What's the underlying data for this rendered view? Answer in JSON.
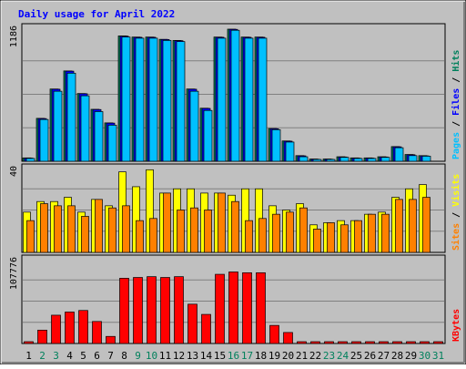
{
  "chart_data": {
    "type": "bar",
    "title": "Daily usage for April 2022",
    "categories": [
      "1",
      "2",
      "3",
      "4",
      "5",
      "6",
      "7",
      "8",
      "9",
      "10",
      "11",
      "12",
      "13",
      "14",
      "15",
      "16",
      "17",
      "18",
      "19",
      "20",
      "21",
      "22",
      "23",
      "24",
      "25",
      "26",
      "27",
      "28",
      "29",
      "30",
      "31"
    ],
    "weekend_days": [
      "2",
      "3",
      "9",
      "10",
      "16",
      "17",
      "23",
      "24",
      "30",
      "31"
    ],
    "colors": {
      "title": "#0000ff",
      "background": "#c0c0c0",
      "hits": "#00805c",
      "files": "#0000ff",
      "pages": "#00c0ff",
      "visits": "#ffff00",
      "sites": "#ff8000",
      "kbytes": "#ff0000",
      "weekday_label": "#000000",
      "weekend_label": "#00805c"
    },
    "panels": [
      {
        "id": "hits",
        "ymax": 1186,
        "ymax_label": "1186",
        "side_label": [
          {
            "text": "Pages",
            "color": "#00c0ff"
          },
          {
            "text": " / ",
            "color": "#000000"
          },
          {
            "text": "Files",
            "color": "#0000ff"
          },
          {
            "text": " / ",
            "color": "#000000"
          },
          {
            "text": "Hits",
            "color": "#00805c"
          }
        ],
        "series": [
          {
            "name": "Hits",
            "color": "#00805c",
            "values": [
              30,
              380,
              640,
              800,
              600,
              460,
              340,
              1110,
              1100,
              1100,
              1080,
              1070,
              640,
              470,
              1100,
              1170,
              1100,
              1100,
              290,
              180,
              50,
              20,
              20,
              40,
              30,
              30,
              40,
              130,
              60,
              50,
              0
            ]
          },
          {
            "name": "Files",
            "color": "#0000ff",
            "values": [
              28,
              378,
              638,
              798,
              598,
              458,
              338,
              1108,
              1098,
              1098,
              1078,
              1068,
              638,
              468,
              1098,
              1168,
              1098,
              1098,
              288,
              178,
              48,
              18,
              18,
              38,
              28,
              28,
              38,
              128,
              58,
              48,
              0
            ]
          },
          {
            "name": "Pages",
            "color": "#00c0ff",
            "values": [
              25,
              370,
              620,
              780,
              580,
              440,
              320,
              1100,
              1090,
              1090,
              1070,
              1060,
              620,
              450,
              1090,
              1160,
              1090,
              1090,
              280,
              170,
              40,
              15,
              15,
              35,
              25,
              25,
              35,
              120,
              50,
              45,
              0
            ]
          }
        ]
      },
      {
        "id": "visits",
        "ymax": 40,
        "ymax_label": "40",
        "side_label": [
          {
            "text": "Sites",
            "color": "#ff8000"
          },
          {
            "text": " / ",
            "color": "#000000"
          },
          {
            "text": "Visits",
            "color": "#ffff00"
          }
        ],
        "series": [
          {
            "name": "Visits",
            "color": "#ffff00",
            "values": [
              19,
              24,
              24,
              26,
              19,
              25,
              22,
              38,
              31,
              39,
              28,
              30,
              30,
              28,
              28,
              27,
              30,
              30,
              22,
              20,
              23,
              13,
              14,
              15,
              15,
              18,
              19,
              26,
              30,
              32,
              0
            ]
          },
          {
            "name": "Sites",
            "color": "#ff8000",
            "values": [
              15,
              23,
              22,
              22,
              17,
              25,
              21,
              22,
              15,
              16,
              28,
              20,
              21,
              20,
              28,
              24,
              15,
              16,
              18,
              19,
              21,
              11,
              14,
              13,
              15,
              18,
              18,
              25,
              25,
              26,
              0
            ]
          }
        ]
      },
      {
        "id": "kbytes",
        "ymax": 107776,
        "ymax_label": "107776",
        "side_label": [
          {
            "text": "KBytes",
            "color": "#ff0000"
          }
        ],
        "series": [
          {
            "name": "KBytes",
            "color": "#ff0000",
            "values": [
              1500,
              17000,
              36000,
              40000,
              42000,
              28000,
              9000,
              83000,
              84000,
              85000,
              84000,
              85000,
              50000,
              37000,
              88000,
              91000,
              90000,
              90000,
              23000,
              14000,
              500,
              500,
              500,
              500,
              500,
              500,
              500,
              500,
              2000,
              500,
              500
            ]
          }
        ]
      }
    ]
  }
}
